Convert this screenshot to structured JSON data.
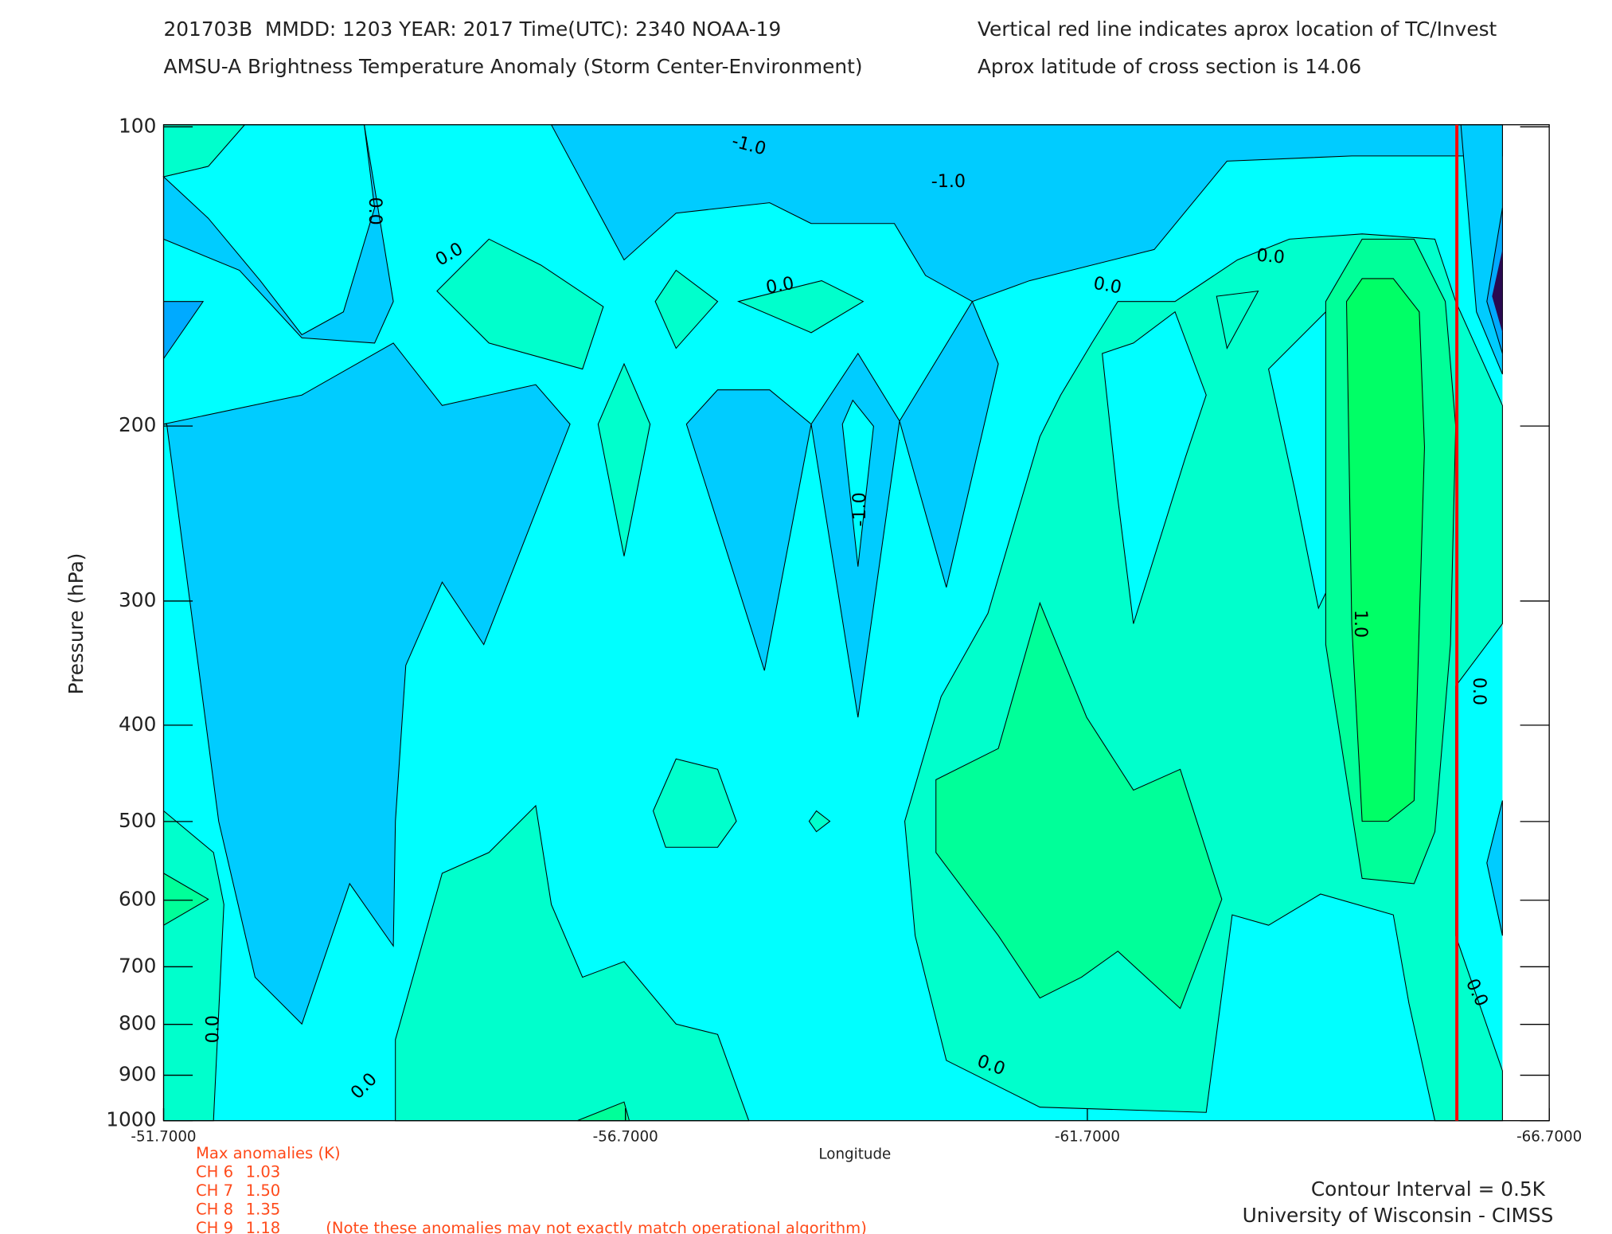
{
  "header": {
    "line1_left": "201703B  MMDD: 1203 YEAR: 2017 Time(UTC): 2340 NOAA-19",
    "line1_right": "Vertical red line indicates aprox location of TC/Invest",
    "line2_left": "AMSU-A Brightness Temperature Anomaly (Storm Center-Environment)",
    "line2_right": "Aprox latitude of cross section is 14.06"
  },
  "chart_data": {
    "type": "contour",
    "xlabel": "Longitude",
    "ylabel": "Pressure (hPa)",
    "xlim": [
      -51.7,
      -66.7
    ],
    "xticks": [
      {
        "value": -51.7,
        "label": "-51.7000"
      },
      {
        "value": -56.7,
        "label": "-56.7000"
      },
      {
        "value": -61.7,
        "label": "-61.7000"
      },
      {
        "value": -66.7,
        "label": "-66.7000"
      }
    ],
    "ylim": [
      1000,
      100
    ],
    "yscale": "log",
    "yticks": [
      100,
      200,
      300,
      400,
      500,
      600,
      700,
      800,
      900,
      1000
    ],
    "contour_labels": [
      "-1.0",
      "-1.0",
      "0.0",
      "0.0",
      "0.0",
      "0.0",
      "0.0",
      "-1.0",
      "1.0",
      "0.0",
      "0.0",
      "0.0",
      "0.0",
      "0.0"
    ],
    "storm_longitude": -65.7,
    "storm_line_color": "#ff0000"
  },
  "anomalies": {
    "title": "Max anomalies (K)",
    "rows": [
      {
        "channel": "CH 6",
        "value": "1.03"
      },
      {
        "channel": "CH 7",
        "value": "1.50"
      },
      {
        "channel": "CH 8",
        "value": "1.35"
      },
      {
        "channel": "CH 9",
        "value": "1.18"
      }
    ],
    "note": "(Note these anomalies may not exactly match operational algorithm)"
  },
  "footer": {
    "contour_interval": "Contour Interval = 0.5K",
    "credit": "University of Wisconsin - CIMSS"
  }
}
